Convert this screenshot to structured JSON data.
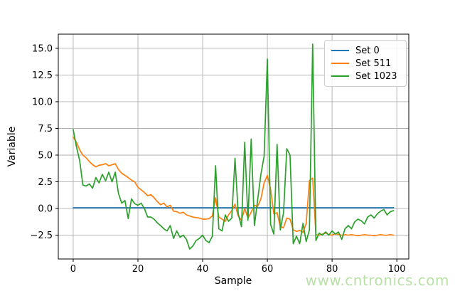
{
  "chart_data": {
    "type": "line",
    "title": "",
    "xlabel": "Sample",
    "ylabel": "Variable",
    "x_values": "integer sample indices 0-99, step 1",
    "n_points": 100,
    "xlim": [
      -4.6,
      103.7
    ],
    "ylim": [
      -4.73,
      16.33
    ],
    "grid": true,
    "legend_position": "upper right",
    "xticks": {
      "values": [
        0,
        20,
        40,
        60,
        80,
        100
      ],
      "labels": [
        "0",
        "20",
        "40",
        "60",
        "80",
        "100"
      ]
    },
    "yticks": {
      "values": [
        -2.5,
        0,
        2.5,
        5,
        7.5,
        10,
        12.5,
        15
      ],
      "labels": [
        "−2.5",
        "0.0",
        "2.5",
        "5.0",
        "7.5",
        "10.0",
        "12.5",
        "15.0"
      ]
    },
    "series": [
      {
        "name": "Set 0",
        "color": "#1f77b4",
        "constant": 0.07,
        "n": 100
      },
      {
        "name": "Set 511",
        "color": "#ff7f0e",
        "values": [
          6.7,
          6.2,
          5.5,
          5.0,
          4.75,
          4.4,
          4.1,
          3.9,
          4.05,
          4.1,
          4.2,
          4.0,
          4.1,
          4.2,
          3.65,
          3.3,
          3.1,
          2.9,
          2.65,
          2.5,
          2.0,
          1.75,
          1.5,
          1.2,
          1.3,
          1.0,
          0.65,
          0.35,
          0.5,
          0.15,
          0.3,
          -0.25,
          -0.3,
          -0.45,
          -0.35,
          -0.6,
          -0.7,
          -0.8,
          -0.85,
          -0.9,
          -1.0,
          -1.0,
          -0.95,
          -0.7,
          1.0,
          -0.8,
          -1.0,
          -1.2,
          -0.6,
          -0.2,
          0.4,
          -0.7,
          -1.1,
          0.0,
          -0.9,
          -0.35,
          0.3,
          0.2,
          0.9,
          2.4,
          3.1,
          1.8,
          -0.5,
          -0.4,
          -1.7,
          -1.8,
          -0.9,
          -1.0,
          -2.0,
          -2.15,
          -2.05,
          -2.25,
          -1.4,
          2.6,
          2.85,
          -2.45,
          -2.5,
          -2.4,
          -2.3,
          -2.45,
          -2.5,
          -2.35,
          -2.45,
          -2.5,
          -2.45,
          -2.5,
          -2.45,
          -2.5,
          -2.55,
          -2.5,
          -2.45,
          -2.5,
          -2.5,
          -2.55,
          -2.5,
          -2.45,
          -2.5,
          -2.5,
          -2.45,
          -2.5
        ]
      },
      {
        "name": "Set 1023",
        "color": "#2ca02c",
        "values": [
          7.4,
          5.8,
          4.5,
          2.2,
          2.1,
          2.3,
          1.9,
          2.9,
          2.4,
          3.2,
          2.6,
          3.4,
          2.5,
          3.4,
          1.4,
          0.5,
          0.75,
          -0.95,
          0.9,
          0.45,
          0.3,
          0.5,
          0.0,
          -0.8,
          -0.8,
          -1.0,
          -1.35,
          -1.6,
          -1.9,
          -2.1,
          -1.6,
          -2.8,
          -2.1,
          -2.7,
          -2.5,
          -2.9,
          -3.8,
          -3.5,
          -3.0,
          -2.8,
          -2.5,
          -3.0,
          -3.2,
          -2.6,
          4.0,
          -1.9,
          -2.1,
          -0.6,
          -1.2,
          -0.9,
          4.7,
          -0.5,
          -1.7,
          6.2,
          -1.1,
          6.5,
          -1.6,
          0.8,
          3.2,
          4.9,
          14.0,
          -1.5,
          -2.4,
          6.0,
          -2.0,
          -0.4,
          5.6,
          5.0,
          -3.3,
          -2.6,
          -3.3,
          -1.4,
          -3.1,
          -2.0,
          15.4,
          -3.0,
          -2.3,
          -2.5,
          -2.2,
          -2.5,
          -2.1,
          -2.4,
          -2.2,
          -2.9,
          -1.9,
          -1.6,
          -1.9,
          -1.25,
          -1.0,
          -1.15,
          -1.45,
          -0.8,
          -0.6,
          -0.9,
          -0.5,
          -0.25,
          -0.1,
          -0.6,
          -0.3,
          -0.2
        ]
      }
    ]
  },
  "watermark": {
    "text": "www.cntronics.com",
    "color": "#b9e0a8"
  },
  "colors": {
    "background": "#ffffff",
    "grid": "#b0b0b0",
    "spine": "#000000",
    "legend_border": "#cccccc"
  }
}
